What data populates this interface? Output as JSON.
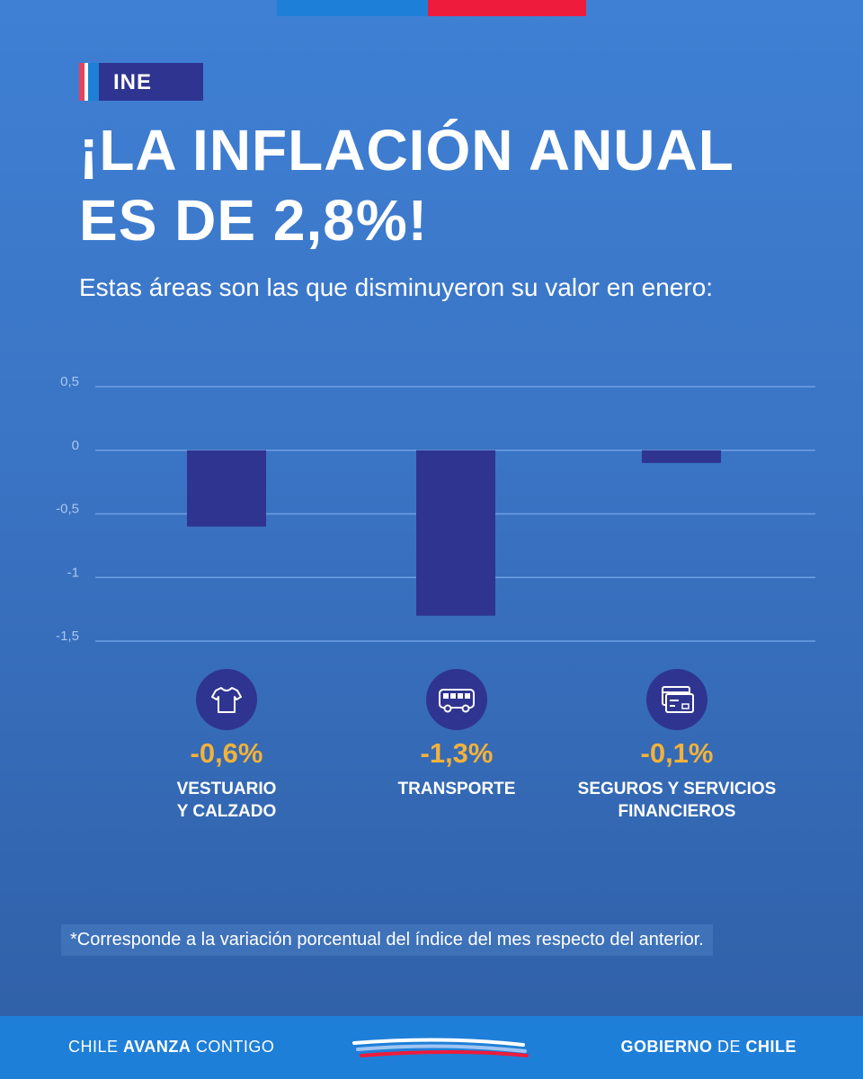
{
  "header": {
    "tag": "INE",
    "title_line1": "¡LA INFLACIÓN ANUAL",
    "title_line2": "ES DE 2,8%!",
    "subtitle": "Estas áreas son las que disminuyeron su valor en enero:"
  },
  "categories": [
    {
      "icon": "shirt-icon",
      "value_label": "-0,6%",
      "label": "VESTUARIO\nY CALZADO"
    },
    {
      "icon": "bus-icon",
      "value_label": "-1,3%",
      "label": "TRANSPORTE"
    },
    {
      "icon": "credit-card-icon",
      "value_label": "-0,1%",
      "label": "SEGUROS Y SERVICIOS\nFINANCIEROS"
    }
  ],
  "chart_data": {
    "type": "bar",
    "title": "",
    "categories": [
      "VESTUARIO Y CALZADO",
      "TRANSPORTE",
      "SEGUROS Y SERVICIOS FINANCIEROS"
    ],
    "values": [
      -0.6,
      -1.3,
      -0.1
    ],
    "ylim": [
      -1.5,
      0.5
    ],
    "yticks": [
      0.5,
      0,
      -0.5,
      -1,
      -1.5
    ],
    "ytick_labels": [
      "0,5",
      "0",
      "-0,5",
      "-1",
      "-1,5"
    ],
    "xlabel": "",
    "ylabel": "",
    "grid": true,
    "bar_color": "#2f3491"
  },
  "footnote": "*Corresponde a la variación porcentual del índice del mes respecto del anterior.",
  "footer": {
    "left_a": "CHILE ",
    "left_b": "AVANZA",
    "left_c": " CONTIGO",
    "right_a": "GOBIERNO ",
    "right_b": "DE",
    "right_c": " CHILE"
  },
  "colors": {
    "background": "#3a73c3",
    "accent_yellow": "#f2b23a",
    "navy": "#2f3491",
    "red": "#ee1b3c",
    "blue": "#1e7fd8"
  }
}
